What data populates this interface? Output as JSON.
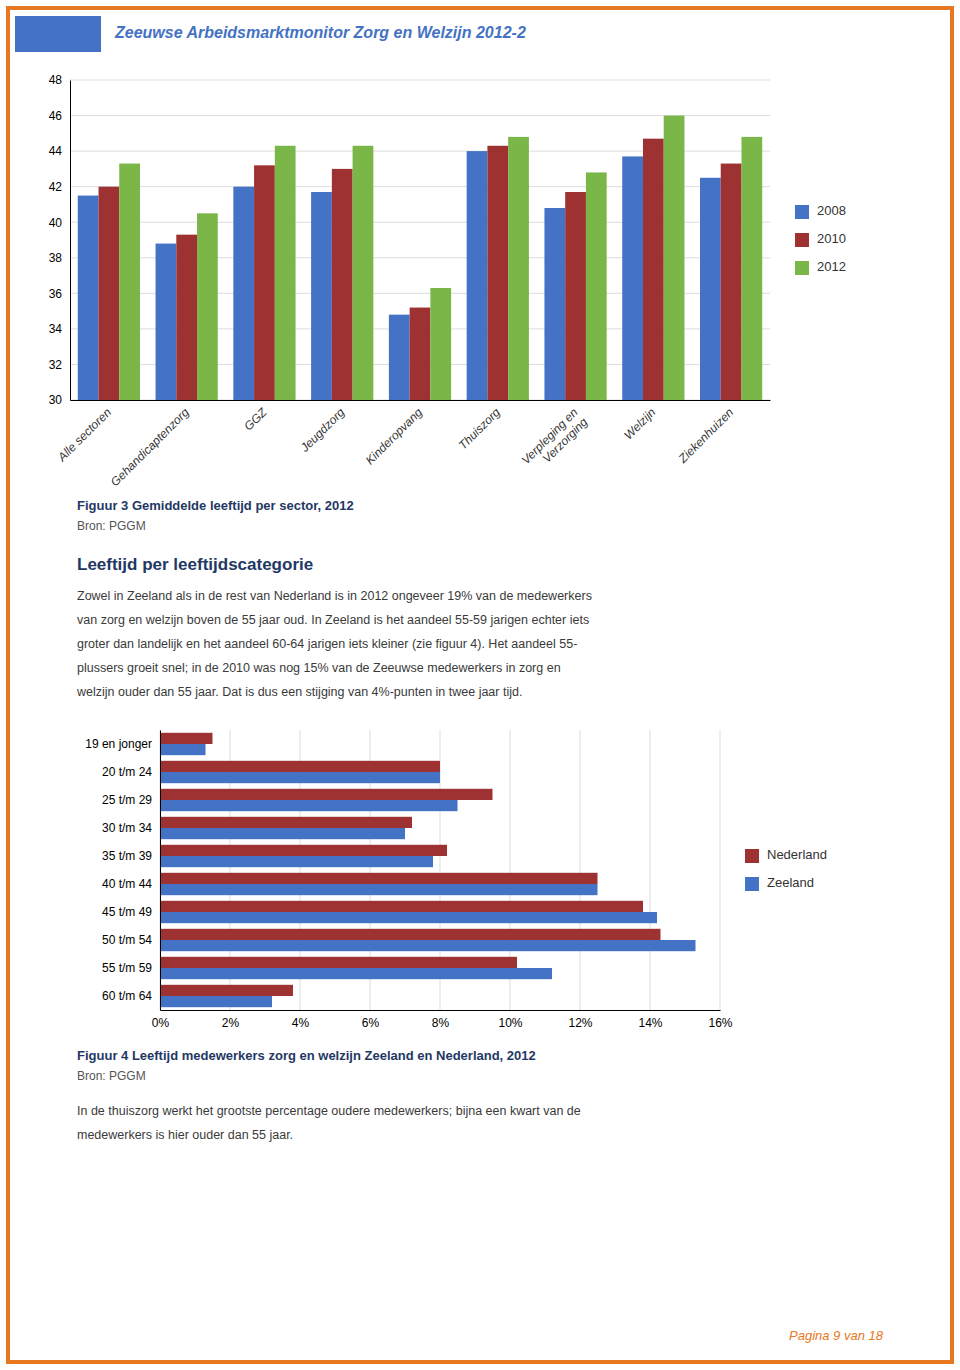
{
  "page": {
    "header_title": "Zeeuwse Arbeidsmarktmonitor Zorg en Welzijn 2012-2",
    "header_color": "#4472c4",
    "border_color": "#e87722",
    "section_heading": "Leeftijd per leeftijdscategorie",
    "paragraphs": [
      [
        "Zowel in Zeeland als in de rest van Nederland is in 2012 ongeveer 19% van de medewerkers",
        "van zorg en welzijn boven de 55 jaar oud. In Zeeland is het aandeel 55-59 jarigen echter iets",
        "groter dan landelijk en het aandeel 60-64 jarigen iets kleiner (zie figuur 4). Het aandeel 55-",
        "plussers groeit snel; in de 2010 was nog 15% van de Zeeuwse medewerkers in zorg en",
        "welzijn ouder dan 55 jaar. Dat is dus een stijging van 4%-punten in twee jaar tijd."
      ],
      [
        "In de thuiszorg werkt het grootste percentage oudere medewerkers; bijna een kwart van de",
        "medewerkers is hier ouder dan 55 jaar."
      ]
    ],
    "footer": "Pagina 9 van 18",
    "footer_color": "#e87722"
  },
  "chart_data": [
    {
      "type": "bar",
      "title": "Figuur 3 Gemiddelde leeftijd per sector, 2012",
      "subtitle": "Bron: PGGM",
      "categories": [
        "Alle sectoren",
        "Gehandicaptenzorg",
        "GGZ",
        "Jeugdzorg",
        "Kinderopvang",
        "Thuiszorg",
        "Verpleging en\nVerzorging",
        "Welzijn",
        "Ziekenhuizen"
      ],
      "series": [
        {
          "name": "2008",
          "color": "#4472c4",
          "values": [
            41.5,
            38.8,
            42.0,
            41.7,
            34.8,
            44.0,
            40.8,
            43.7,
            42.5
          ]
        },
        {
          "name": "2010",
          "color": "#9e3132",
          "values": [
            42.0,
            39.3,
            43.2,
            43.0,
            35.2,
            44.3,
            41.7,
            44.7,
            43.3
          ]
        },
        {
          "name": "2012",
          "color": "#7ab648",
          "values": [
            43.3,
            40.5,
            44.3,
            44.3,
            36.3,
            44.8,
            42.8,
            46.0,
            44.8
          ]
        }
      ],
      "ylim": [
        30,
        48
      ],
      "yticks": [
        30,
        32,
        34,
        36,
        38,
        40,
        42,
        44,
        46,
        48
      ],
      "grid": true,
      "legend": "right"
    },
    {
      "type": "bar",
      "orientation": "horizontal",
      "title": "Figuur 4 Leeftijd medewerkers zorg en welzijn Zeeland en Nederland, 2012",
      "subtitle": "Bron: PGGM",
      "categories": [
        "60 t/m 64",
        "55 t/m 59",
        "50 t/m 54",
        "45 t/m 49",
        "40 t/m 44",
        "35 t/m 39",
        "30 t/m 34",
        "25 t/m 29",
        "20 t/m 24",
        "19 en jonger"
      ],
      "series": [
        {
          "name": "Nederland",
          "color": "#9e3132",
          "values": [
            3.8,
            10.2,
            14.3,
            13.8,
            12.5,
            8.2,
            7.2,
            9.5,
            8.0,
            1.5
          ]
        },
        {
          "name": "Zeeland",
          "color": "#4472c4",
          "values": [
            3.2,
            11.2,
            15.3,
            14.2,
            12.5,
            7.8,
            7.0,
            8.5,
            8.0,
            1.3
          ]
        }
      ],
      "xlim": [
        0,
        16
      ],
      "xticks": [
        {
          "value": 0,
          "label": "0%"
        },
        {
          "value": 2,
          "label": "2%"
        },
        {
          "value": 4,
          "label": "4%"
        },
        {
          "value": 6,
          "label": "6%"
        },
        {
          "value": 8,
          "label": "8%"
        },
        {
          "value": 10,
          "label": "10%"
        },
        {
          "value": 12,
          "label": "12%"
        },
        {
          "value": 14,
          "label": "14%"
        },
        {
          "value": 16,
          "label": "16%"
        }
      ],
      "grid": true,
      "legend": "right"
    }
  ]
}
